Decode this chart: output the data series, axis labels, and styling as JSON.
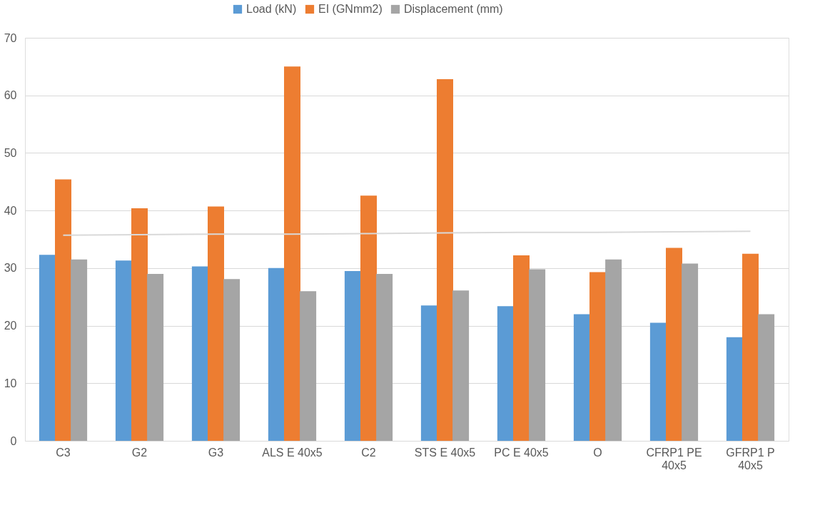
{
  "chart_data": {
    "type": "bar",
    "categories": [
      "C3",
      "G2",
      "G3",
      "ALS E 40x5",
      "C2",
      "STS E 40x5",
      "PC E 40x5",
      "O",
      "CFRP1 PE 40x5",
      "GFRP1 P 40x5"
    ],
    "series": [
      {
        "name": "Load (kN)",
        "color": "#5b9bd5",
        "values": [
          32.3,
          31.3,
          30.3,
          30.0,
          29.5,
          23.5,
          23.4,
          22.0,
          20.5,
          18.0
        ]
      },
      {
        "name": "EI (GNmm2)",
        "color": "#ed7d31",
        "values": [
          45.4,
          40.4,
          40.7,
          65.0,
          42.6,
          62.8,
          32.2,
          29.3,
          33.5,
          32.5
        ]
      },
      {
        "name": "Displacement (mm)",
        "color": "#a5a5a5",
        "values": [
          31.5,
          29.0,
          28.1,
          26.0,
          29.0,
          26.1,
          29.8,
          31.5,
          30.8,
          22.0
        ]
      },
      {
        "type": "line",
        "color": "#d9d9d9",
        "values": [
          35.7,
          35.8,
          35.9,
          35.9,
          36.0,
          36.1,
          36.2,
          36.2,
          36.3,
          36.4
        ]
      }
    ],
    "ylim": [
      0,
      70
    ],
    "yticks": [
      0,
      10,
      20,
      30,
      40,
      50,
      60,
      70
    ],
    "grid": "y",
    "legend": "top"
  }
}
